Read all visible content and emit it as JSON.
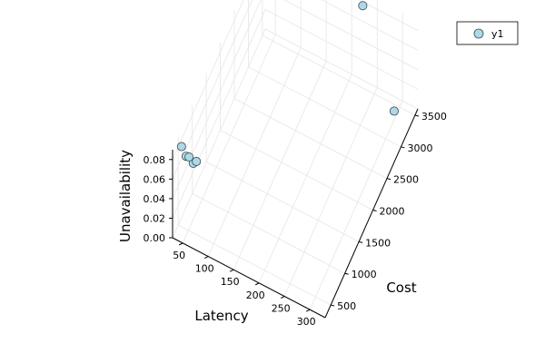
{
  "chart_data": {
    "type": "scatter",
    "title": "",
    "grid": true,
    "legend_position": "top-right",
    "x_axis": {
      "label": "Latency",
      "ticks": [
        50,
        100,
        150,
        200,
        250,
        300
      ],
      "tick_labels": [
        "50",
        "100",
        "150",
        "200",
        "250",
        "300"
      ],
      "range": [
        30,
        330
      ]
    },
    "y_axis": {
      "label": "Cost",
      "ticks": [
        500,
        1000,
        1500,
        2000,
        2500,
        3000,
        3500
      ],
      "tick_labels": [
        "500",
        "1000",
        "1500",
        "2000",
        "2500",
        "3000",
        "3500"
      ],
      "range": [
        300,
        3600
      ]
    },
    "z_axis": {
      "label": "Unavailability",
      "ticks": [
        0.0,
        0.02,
        0.04,
        0.06,
        0.08
      ],
      "tick_labels": [
        "0.00",
        "0.02",
        "0.04",
        "0.06",
        "0.08"
      ],
      "range": [
        0.0,
        0.09
      ]
    },
    "series": [
      {
        "name": "y1",
        "color": "#add8e6",
        "edge_color": "#3a4a52",
        "points": [
          {
            "x": 42,
            "y": 400,
            "z": 0.09
          },
          {
            "x": 50,
            "y": 420,
            "z": 0.081
          },
          {
            "x": 63,
            "y": 440,
            "z": 0.076
          },
          {
            "x": 68,
            "y": 460,
            "z": 0.078
          },
          {
            "x": 58,
            "y": 380,
            "z": 0.085
          },
          {
            "x": 300,
            "y": 3300,
            "z": 0.009
          },
          {
            "x": 230,
            "y": 3450,
            "z": 0.088
          }
        ]
      }
    ]
  }
}
